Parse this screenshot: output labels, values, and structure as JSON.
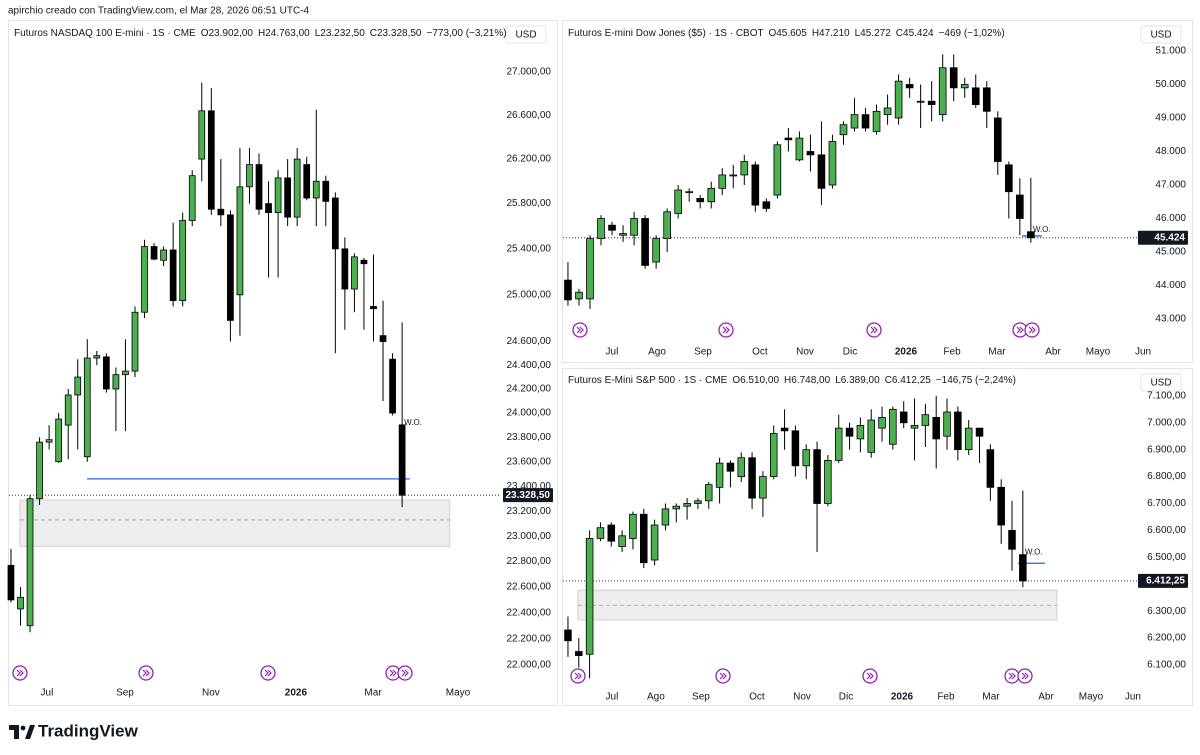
{
  "credit": "apirchio creado con TradingView.com, el Mar 28, 2026 06:51 UTC-4",
  "brand": "TradingView",
  "chart_data": [
    {
      "type": "candlestick",
      "title": "Futuros NASDAQ 100 E-mini · 1S · CME",
      "legend_values": [
        "O23.902,00",
        "H24.763,00",
        "L23.232,50",
        "C23.328,50",
        "−773,00 (−3,21%)"
      ],
      "currency": "USD",
      "log": true,
      "grid": false,
      "up_color": "#4caf50",
      "down_color": "#000000",
      "open": [
        22770,
        22430,
        22300,
        23300,
        23760,
        23600,
        23900,
        24150,
        23640,
        24460,
        24470,
        24200,
        24320,
        24350,
        24850,
        25420,
        25300,
        25390,
        24950,
        25650,
        26200,
        26640,
        25750,
        25700,
        25000,
        25950,
        26150,
        25800,
        25720,
        26030,
        25680,
        26150,
        25850,
        26000,
        25850,
        25400,
        25050,
        25300,
        24900,
        24650,
        24450,
        23902
      ],
      "high": [
        22900,
        22600,
        23330,
        23800,
        23900,
        24000,
        24200,
        24450,
        24620,
        24520,
        24500,
        24380,
        24620,
        24900,
        25480,
        25450,
        25420,
        25630,
        25720,
        26100,
        26900,
        26850,
        26200,
        25740,
        26300,
        26300,
        26250,
        26000,
        26100,
        26200,
        26300,
        26220,
        26650,
        26050,
        25900,
        25500,
        25360,
        25320,
        25350,
        24950,
        24500,
        24763
      ],
      "low": [
        22480,
        22300,
        22250,
        23250,
        23700,
        23590,
        23620,
        23700,
        23600,
        24400,
        24170,
        23850,
        23850,
        24300,
        24800,
        25300,
        25250,
        24900,
        24900,
        25600,
        26000,
        25700,
        25600,
        24600,
        24650,
        25800,
        25700,
        25150,
        25150,
        25600,
        25600,
        25830,
        25600,
        25600,
        24500,
        24700,
        24850,
        24700,
        24600,
        24100,
        23980,
        23232.5
      ],
      "close": [
        22500,
        22520,
        23300,
        23760,
        23780,
        23950,
        24150,
        24300,
        24460,
        24480,
        24200,
        24320,
        24350,
        24850,
        25420,
        25310,
        25390,
        24950,
        25650,
        26050,
        26640,
        25750,
        25700,
        24780,
        25950,
        26150,
        25750,
        25720,
        26030,
        25680,
        26200,
        25850,
        26000,
        25820,
        25400,
        25050,
        25330,
        25270,
        24880,
        24600,
        24000,
        23328.5
      ],
      "xlim": [
        -0.31,
        51.26
      ],
      "xticks": [
        {
          "value": 3.77,
          "label": "Jul"
        },
        {
          "value": 11.95,
          "label": "Sep"
        },
        {
          "value": 20.96,
          "label": "Nov"
        },
        {
          "value": 29.87,
          "label": "2026"
        },
        {
          "value": 37.95,
          "label": "Mar"
        },
        {
          "value": 46.86,
          "label": "Mayo"
        }
      ],
      "ylim": [
        21886,
        27489
      ],
      "yticks": [
        {
          "value": 27000,
          "label": "27.000,00"
        },
        {
          "value": 26600,
          "label": "26.600,00"
        },
        {
          "value": 26200,
          "label": "26.200,00"
        },
        {
          "value": 25800,
          "label": "25.800,00"
        },
        {
          "value": 25400,
          "label": "25.400,00"
        },
        {
          "value": 25000,
          "label": "25.000,00"
        },
        {
          "value": 24600,
          "label": "24.600,00"
        },
        {
          "value": 24400,
          "label": "24.400,00"
        },
        {
          "value": 24200,
          "label": "24.200,00"
        },
        {
          "value": 24000,
          "label": "24.000,00"
        },
        {
          "value": 23800,
          "label": "23.800,00"
        },
        {
          "value": 23600,
          "label": "23.600,00"
        },
        {
          "value": 23400,
          "label": "23.400,00"
        },
        {
          "value": 23200,
          "label": "23.200,00"
        },
        {
          "value": 23000,
          "label": "23.000,00"
        },
        {
          "value": 22800,
          "label": "22.800,00"
        },
        {
          "value": 22600,
          "label": "22.600,00"
        },
        {
          "value": 22400,
          "label": "22.400,00"
        },
        {
          "value": 22200,
          "label": "22.200,00"
        },
        {
          "value": 22000,
          "label": "22.000,00"
        }
      ],
      "last_price": {
        "value": 23328.5,
        "label": "23.328,50"
      },
      "annotation": "W.O.",
      "levels": [
        {
          "value": 23460,
          "x": [
            7.97,
            41.8
          ],
          "color": "#2962ff"
        }
      ],
      "zones": [
        {
          "top": 23290,
          "bottom": 22920,
          "mid": 23130,
          "x": [
            0.94,
            46.0
          ]
        }
      ]
    },
    {
      "type": "candlestick",
      "title": "Futuros E-mini Dow Jones ($5) · 1S · CBOT",
      "legend_values": [
        "O45.605",
        "H47.210",
        "L45.272",
        "C45.424",
        "−469 (−1,02%)"
      ],
      "currency": "USD",
      "log": false,
      "grid": false,
      "up_color": "#4caf50",
      "down_color": "#000000",
      "open": [
        44160,
        43600,
        43600,
        45400,
        45800,
        45500,
        45500,
        46000,
        44700,
        45400,
        46150,
        46800,
        46600,
        46500,
        46900,
        47300,
        47300,
        47600,
        46500,
        46700,
        48400,
        47750,
        48000,
        47900,
        47000,
        48500,
        48700,
        49100,
        48600,
        49100,
        49000,
        50000,
        49500,
        49500,
        49100,
        50500,
        49900,
        49900,
        49900,
        49000,
        47600,
        46700,
        45605
      ],
      "high": [
        44700,
        43900,
        45500,
        46100,
        45900,
        45800,
        46200,
        46100,
        45500,
        46300,
        47000,
        46900,
        46700,
        47100,
        47500,
        47600,
        47900,
        47700,
        46600,
        48300,
        48700,
        48600,
        48500,
        48900,
        48500,
        48900,
        49600,
        49300,
        49400,
        49700,
        50300,
        50200,
        50000,
        50100,
        50900,
        50900,
        50200,
        50300,
        50100,
        49200,
        47700,
        47200,
        47210
      ],
      "low": [
        43400,
        43400,
        43300,
        45200,
        45500,
        45300,
        45200,
        44500,
        44500,
        45000,
        46000,
        46500,
        46300,
        46300,
        46700,
        46900,
        47000,
        46200,
        46200,
        46600,
        48000,
        47700,
        47400,
        46400,
        46900,
        48200,
        48600,
        48600,
        48500,
        48800,
        48800,
        49600,
        48700,
        48900,
        48900,
        49500,
        49600,
        49300,
        48700,
        47300,
        46000,
        45500,
        45272
      ],
      "close": [
        43570,
        43800,
        45400,
        46000,
        45650,
        45550,
        46000,
        44600,
        45400,
        46200,
        46850,
        46800,
        46500,
        46900,
        47300,
        47300,
        47700,
        46400,
        46300,
        48200,
        48350,
        48400,
        47900,
        46900,
        48300,
        48800,
        49100,
        48700,
        49200,
        49300,
        50100,
        49900,
        49500,
        49400,
        50500,
        49900,
        50000,
        49400,
        49200,
        47700,
        46800,
        46000,
        45424
      ],
      "xlim": [
        -0.54,
        52.81
      ],
      "xticks": [
        {
          "value": 3.99,
          "label": "Jul"
        },
        {
          "value": 8.08,
          "label": "Ago"
        },
        {
          "value": 12.25,
          "label": "Sep"
        },
        {
          "value": 17.42,
          "label": "Oct"
        },
        {
          "value": 21.51,
          "label": "Nov"
        },
        {
          "value": 25.59,
          "label": "Dic"
        },
        {
          "value": 30.67,
          "label": "2026"
        },
        {
          "value": 34.85,
          "label": "Feb"
        },
        {
          "value": 38.93,
          "label": "Mar"
        },
        {
          "value": 44.01,
          "label": "Abr"
        },
        {
          "value": 48.09,
          "label": "Mayo"
        },
        {
          "value": 52.18,
          "label": "Jun"
        }
      ],
      "ylim": [
        42373,
        51925
      ],
      "yticks": [
        {
          "value": 51000,
          "label": "51.000"
        },
        {
          "value": 50000,
          "label": "50.000"
        },
        {
          "value": 49000,
          "label": "49.000"
        },
        {
          "value": 48000,
          "label": "48.000"
        },
        {
          "value": 47000,
          "label": "47.000"
        },
        {
          "value": 46000,
          "label": "46.000"
        },
        {
          "value": 45000,
          "label": "45.000"
        },
        {
          "value": 44000,
          "label": "44.000"
        },
        {
          "value": 43000,
          "label": "43.000"
        }
      ],
      "last_price": {
        "value": 45424,
        "label": "45.424"
      },
      "annotation": "W.O.",
      "levels": [
        {
          "value": 45480,
          "x": [
            41.2,
            43.0
          ],
          "color": "#2962ff"
        }
      ],
      "zones": []
    },
    {
      "type": "candlestick",
      "title": "Futuros E-Mini S&P 500 · 1S · CME",
      "legend_values": [
        "O6.510,00",
        "H6.748,00",
        "L6.389,00",
        "C6.412,25",
        "−146,75 (−2,24%)"
      ],
      "currency": "USD",
      "log": false,
      "grid": false,
      "up_color": "#4caf50",
      "down_color": "#000000",
      "open": [
        6230,
        6150,
        6140,
        6570,
        6620,
        6540,
        6570,
        6660,
        6490,
        6620,
        6680,
        6690,
        6700,
        6710,
        6760,
        6850,
        6800,
        6870,
        6720,
        6800,
        6980,
        6970,
        6840,
        6900,
        6700,
        6860,
        6980,
        6940,
        6890,
        6980,
        6920,
        7040,
        6980,
        6990,
        7020,
        6950,
        7040,
        6900,
        6980,
        6900,
        6760,
        6600,
        6510
      ],
      "high": [
        6280,
        6200,
        6600,
        6630,
        6630,
        6600,
        6670,
        6680,
        6640,
        6700,
        6700,
        6720,
        6720,
        6780,
        6870,
        6860,
        6890,
        6890,
        6820,
        6990,
        7050,
        6990,
        6920,
        6930,
        6880,
        7030,
        7000,
        7020,
        7050,
        7060,
        7060,
        7080,
        7090,
        7070,
        7100,
        7090,
        7060,
        7010,
        6980,
        6920,
        6790,
        6710,
        6748
      ],
      "low": [
        6130,
        6090,
        6050,
        6560,
        6540,
        6520,
        6530,
        6460,
        6470,
        6600,
        6630,
        6640,
        6680,
        6680,
        6700,
        6760,
        6780,
        6680,
        6650,
        6790,
        6900,
        6800,
        6790,
        6520,
        6690,
        6850,
        6900,
        6890,
        6870,
        6930,
        6900,
        6980,
        6860,
        6910,
        6830,
        6900,
        6860,
        6880,
        6850,
        6710,
        6550,
        6450,
        6389
      ],
      "close": [
        6190,
        6135,
        6570,
        6610,
        6560,
        6580,
        6660,
        6480,
        6620,
        6680,
        6690,
        6700,
        6710,
        6770,
        6850,
        6820,
        6870,
        6720,
        6800,
        6960,
        6970,
        6840,
        6900,
        6700,
        6860,
        6980,
        6950,
        6990,
        7010,
        7020,
        7050,
        7000,
        6990,
        7030,
        6940,
        7040,
        6900,
        6980,
        6950,
        6760,
        6620,
        6530,
        6412.25
      ],
      "xlim": [
        -0.55,
        53.74
      ],
      "xticks": [
        {
          "value": 4.06,
          "label": "Jul"
        },
        {
          "value": 8.12,
          "label": "Ago"
        },
        {
          "value": 12.28,
          "label": "Sep"
        },
        {
          "value": 17.45,
          "label": "Oct"
        },
        {
          "value": 21.61,
          "label": "Nov"
        },
        {
          "value": 25.67,
          "label": "Dic"
        },
        {
          "value": 30.84,
          "label": "2026"
        },
        {
          "value": 34.9,
          "label": "Feb"
        },
        {
          "value": 39.06,
          "label": "Mar"
        },
        {
          "value": 44.14,
          "label": "Abr"
        },
        {
          "value": 48.29,
          "label": "Mayo"
        },
        {
          "value": 52.16,
          "label": "Jun"
        }
      ],
      "ylim": [
        6033,
        7196
      ],
      "yticks": [
        {
          "value": 7100,
          "label": "7.100,00"
        },
        {
          "value": 7000,
          "label": "7.000,00"
        },
        {
          "value": 6900,
          "label": "6.900,00"
        },
        {
          "value": 6800,
          "label": "6.800,00"
        },
        {
          "value": 6700,
          "label": "6.700,00"
        },
        {
          "value": 6600,
          "label": "6.600,00"
        },
        {
          "value": 6500,
          "label": "6.500,00"
        },
        {
          "value": 6300,
          "label": "6.300,00"
        },
        {
          "value": 6200,
          "label": "6.200,00"
        },
        {
          "value": 6100,
          "label": "6.100,00"
        }
      ],
      "last_price": {
        "value": 6412.25,
        "label": "6.412,25"
      },
      "annotation": "W.O.",
      "levels": [
        {
          "value": 6478,
          "x": [
            41.55,
            44.04
          ],
          "color": "#2962ff"
        }
      ],
      "zones": [
        {
          "top": 6378,
          "bottom": 6267,
          "mid": 6322,
          "x": [
            0.92,
            45.15
          ]
        }
      ]
    }
  ]
}
